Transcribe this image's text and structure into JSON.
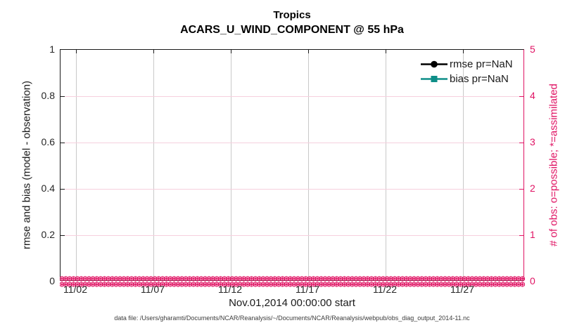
{
  "figure": {
    "title": "Tropics",
    "subtitle": "ACARS_U_WIND_COMPONENT @ 55 hPa",
    "xlabel": "Nov.01,2014 00:00:00 start",
    "ylabel_left": "rmse and bias (model - observation)",
    "ylabel_right": "# of obs: o=possible; *=assimilated",
    "caption": "data file: /Users/gharamti/Documents/NCAR/Reanalysis/~/Documents/NCAR/Reanalysis/webpub/obs_diag_output_2014-11.nc"
  },
  "legend": {
    "position": "upper-right-inside",
    "items": [
      {
        "label": "rmse pr=NaN",
        "marker": "filled-circle",
        "color": "#000000"
      },
      {
        "label": "bias pr=NaN",
        "marker": "filled-square",
        "color": "#0E8E88"
      }
    ]
  },
  "axes": {
    "x": {
      "range_days": [
        0,
        30
      ],
      "tick_days": [
        1,
        6,
        11,
        16,
        21,
        26
      ],
      "tick_labels": [
        "11/02",
        "11/07",
        "11/12",
        "11/17",
        "11/22",
        "11/27"
      ]
    },
    "y_left": {
      "range": [
        0,
        1
      ],
      "ticks": [
        0,
        0.2,
        0.4,
        0.6,
        0.8,
        1
      ],
      "tick_labels": [
        "0",
        "0.2",
        "0.4",
        "0.6",
        "0.8",
        "1"
      ]
    },
    "y_right": {
      "range": [
        0,
        5
      ],
      "ticks": [
        0,
        1,
        2,
        3,
        4,
        5
      ],
      "tick_labels": [
        "0",
        "1",
        "2",
        "3",
        "4",
        "5"
      ]
    }
  },
  "colors": {
    "axis_dark": "#1a1a1a",
    "right_axis_pink": "#E01464",
    "grid_vertical": "#c9c9c9",
    "grid_horizontal_pink": "#f6d0de",
    "rmse_black": "#000000",
    "bias_teal": "#0E8E88"
  },
  "obs_markers": {
    "rows": 2,
    "per_row": 120,
    "glyphs": "o (possible) overlaid with * (assimilated)",
    "value": 0
  },
  "chart_data": {
    "type": "line",
    "title": "Tropics",
    "subtitle": "ACARS_U_WIND_COMPONENT @ 55 hPa",
    "xlabel": "Nov.01,2014 00:00:00 start",
    "ylabel": "rmse and bias (model - observation)",
    "ylabel_right": "# of obs: o=possible; *=assimilated",
    "x_start": "Nov.01,2014 00:00:00",
    "x_tick_labels": [
      "11/02",
      "11/07",
      "11/12",
      "11/17",
      "11/22",
      "11/27"
    ],
    "ylim_left": [
      0,
      1
    ],
    "ylim_right": [
      0,
      5
    ],
    "grid": true,
    "legend_position": "upper right",
    "series": [
      {
        "name": "rmse pr=NaN",
        "axis": "left",
        "values": "all NaN — no curve plotted"
      },
      {
        "name": "bias pr=NaN",
        "axis": "left",
        "values": "all NaN — no curve plotted"
      },
      {
        "name": "# of obs possible (o markers)",
        "axis": "right",
        "constant_value": 0,
        "n_points": 120
      },
      {
        "name": "# of obs assimilated (* markers)",
        "axis": "right",
        "constant_value": 0,
        "n_points": 120
      }
    ]
  }
}
